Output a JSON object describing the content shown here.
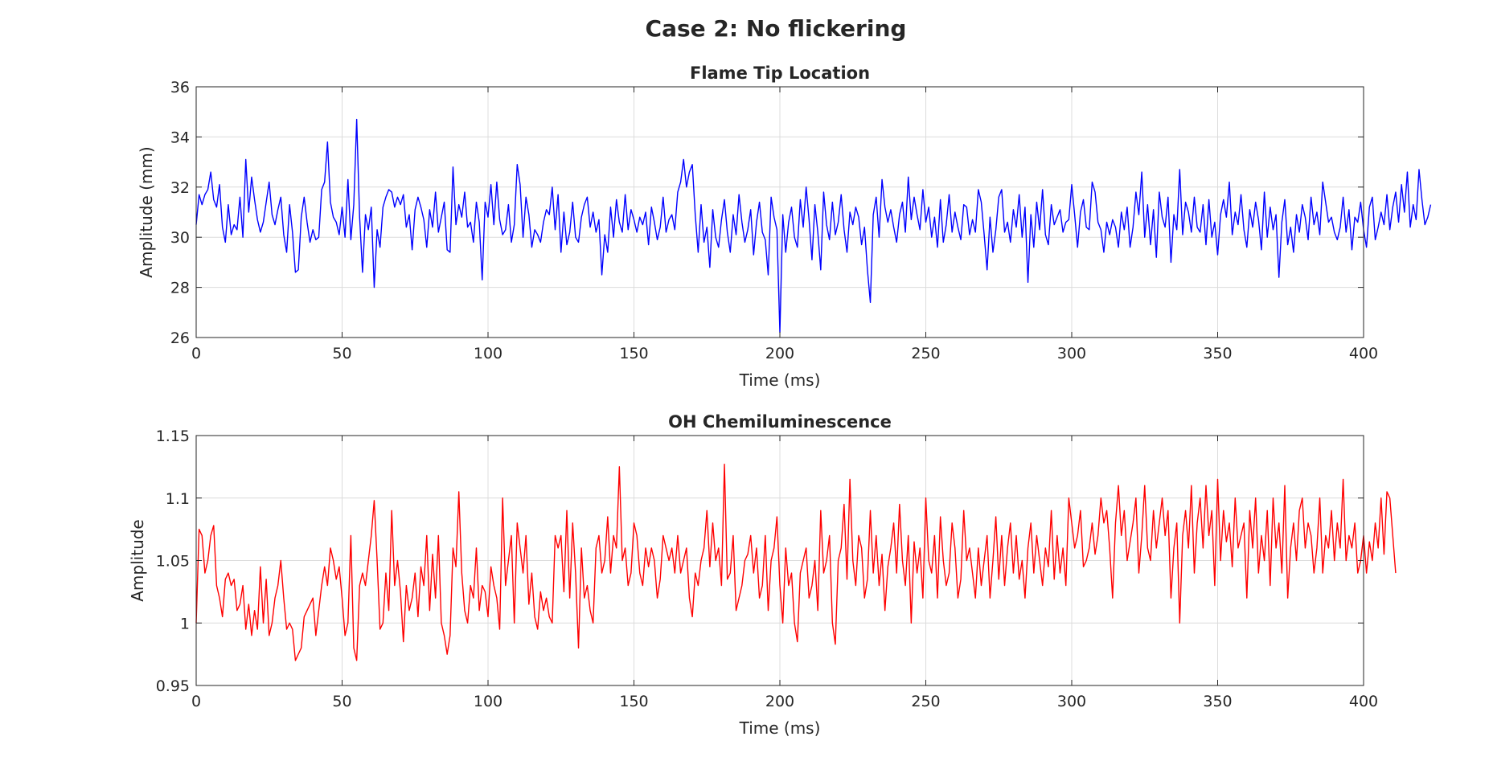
{
  "figure_title": "Case 2: No flickering",
  "chart_data": [
    {
      "type": "line",
      "title": "Flame Tip Location",
      "xlabel": "Time (ms)",
      "ylabel": "Amplitude (mm)",
      "xlim": [
        0,
        400
      ],
      "ylim": [
        26,
        36
      ],
      "xticks": [
        0,
        50,
        100,
        150,
        200,
        250,
        300,
        350,
        400
      ],
      "yticks": [
        26,
        28,
        30,
        32,
        34,
        36
      ],
      "ytick_labels": [
        "26",
        "28",
        "30",
        "32",
        "34",
        "36"
      ],
      "grid": true,
      "series": [
        {
          "name": "Flame Tip Location",
          "color": "#0000ff",
          "x_start": 0,
          "x_step": 1,
          "values": [
            30.5,
            31.7,
            31.3,
            31.7,
            31.9,
            32.6,
            31.5,
            31.2,
            32.1,
            30.4,
            29.8,
            31.3,
            30.1,
            30.5,
            30.3,
            31.6,
            30.0,
            33.1,
            31.0,
            32.4,
            31.5,
            30.7,
            30.2,
            30.6,
            31.4,
            32.2,
            30.9,
            30.5,
            31.1,
            31.6,
            30.1,
            29.4,
            31.3,
            30.2,
            28.6,
            28.7,
            30.8,
            31.6,
            30.6,
            29.8,
            30.3,
            29.9,
            30.0,
            31.9,
            32.2,
            33.8,
            31.4,
            30.8,
            30.6,
            30.1,
            31.2,
            30.0,
            32.3,
            29.9,
            31.3,
            34.7,
            30.8,
            28.6,
            30.9,
            30.3,
            31.2,
            28.0,
            30.3,
            29.6,
            31.2,
            31.6,
            31.9,
            31.8,
            31.2,
            31.6,
            31.3,
            31.7,
            30.4,
            30.9,
            29.5,
            31.1,
            31.6,
            31.2,
            30.7,
            29.6,
            31.1,
            30.4,
            31.8,
            30.2,
            30.8,
            31.4,
            29.5,
            29.4,
            32.8,
            30.5,
            31.3,
            30.8,
            31.8,
            30.4,
            30.6,
            29.8,
            31.4,
            30.6,
            28.3,
            31.4,
            30.8,
            32.1,
            30.5,
            32.2,
            30.7,
            30.1,
            30.3,
            31.3,
            29.8,
            30.5,
            32.9,
            32.1,
            30.0,
            31.6,
            30.9,
            29.6,
            30.3,
            30.1,
            29.8,
            30.6,
            31.1,
            30.9,
            32.0,
            30.3,
            31.7,
            29.4,
            31.0,
            29.7,
            30.2,
            31.4,
            30.0,
            29.8,
            30.8,
            31.3,
            31.6,
            30.4,
            31.0,
            30.2,
            30.7,
            28.5,
            30.1,
            29.4,
            31.2,
            30.0,
            31.5,
            30.6,
            30.2,
            31.7,
            30.3,
            31.1,
            30.7,
            30.2,
            30.8,
            30.5,
            31.0,
            29.7,
            31.2,
            30.6,
            29.9,
            30.4,
            31.6,
            30.2,
            30.7,
            30.9,
            30.3,
            31.8,
            32.2,
            33.1,
            32.0,
            32.6,
            32.9,
            30.9,
            29.4,
            31.3,
            29.8,
            30.4,
            28.8,
            31.1,
            30.0,
            29.6,
            30.7,
            31.5,
            30.2,
            29.4,
            30.9,
            30.1,
            31.7,
            30.6,
            29.8,
            30.3,
            31.1,
            29.3,
            30.6,
            31.4,
            30.2,
            29.9,
            28.5,
            31.6,
            30.8,
            30.3,
            26.2,
            30.9,
            29.4,
            30.6,
            31.2,
            30.0,
            29.6,
            31.5,
            30.4,
            32.0,
            30.7,
            29.1,
            31.3,
            30.2,
            28.7,
            31.8,
            30.5,
            29.9,
            31.4,
            30.1,
            30.6,
            31.7,
            30.3,
            29.4,
            31.0,
            30.5,
            31.2,
            30.8,
            29.7,
            30.4,
            28.7,
            27.4,
            30.9,
            31.6,
            30.0,
            32.3,
            31.2,
            30.6,
            31.1,
            30.4,
            29.8,
            30.9,
            31.4,
            30.2,
            32.4,
            30.7,
            31.6,
            30.9,
            30.3,
            31.9,
            30.6,
            31.2,
            30.0,
            30.8,
            29.6,
            31.5,
            29.8,
            30.5,
            31.7,
            30.2,
            31.0,
            30.4,
            29.9,
            31.3,
            31.2,
            30.1,
            30.7,
            30.2,
            31.9,
            31.4,
            30.1,
            28.7,
            30.8,
            29.4,
            30.3,
            31.6,
            31.9,
            30.2,
            30.6,
            29.8,
            31.1,
            30.4,
            31.7,
            30.0,
            31.2,
            28.2,
            30.9,
            29.6,
            31.4,
            30.3,
            31.9,
            30.1,
            29.7,
            31.3,
            30.5,
            30.8,
            31.1,
            30.2,
            30.6,
            30.7,
            32.1,
            30.9,
            29.6,
            31.0,
            31.5,
            30.4,
            30.3,
            32.2,
            31.8,
            30.6,
            30.3,
            29.4,
            30.6,
            30.1,
            30.7,
            30.4,
            29.6,
            31.0,
            30.3,
            31.2,
            29.6,
            30.4,
            31.8,
            30.9,
            32.6,
            30.0,
            31.3,
            29.7,
            31.1,
            29.2,
            31.8,
            30.8,
            30.4,
            31.6,
            29.0,
            30.9,
            30.3,
            32.7,
            30.1,
            31.4,
            31.0,
            30.2,
            31.6,
            30.4,
            30.2,
            31.3,
            29.7,
            31.5,
            30.0,
            30.6,
            29.3,
            30.9,
            31.5,
            30.8,
            32.2,
            30.1,
            31.0,
            30.5,
            31.7,
            30.3,
            29.6,
            31.1,
            30.4,
            31.4,
            30.7,
            29.5,
            31.8,
            30.0,
            31.2,
            30.3,
            30.9,
            28.4,
            30.6,
            31.5,
            29.7,
            30.4,
            29.4,
            30.9,
            30.2,
            31.3,
            30.8,
            29.9,
            31.6,
            30.5,
            31.0,
            30.1,
            32.2,
            31.4,
            30.6,
            30.8,
            30.2,
            29.9,
            30.4,
            31.6,
            30.2,
            31.1,
            29.5,
            30.8,
            30.6,
            31.4,
            30.3,
            29.6,
            31.2,
            31.6,
            29.9,
            30.4,
            31.0,
            30.5,
            31.7,
            30.3,
            31.2,
            31.8,
            30.6,
            32.1,
            31.0,
            32.6,
            30.4,
            31.3,
            30.7,
            32.7,
            31.5,
            30.5,
            30.8,
            31.3
          ]
        }
      ]
    },
    {
      "type": "line",
      "title": "OH Chemiluminescence",
      "xlabel": "Time (ms)",
      "ylabel": "Amplitude",
      "xlim": [
        0,
        400
      ],
      "ylim": [
        0.95,
        1.15
      ],
      "xticks": [
        0,
        50,
        100,
        150,
        200,
        250,
        300,
        350,
        400
      ],
      "yticks": [
        0.95,
        1.0,
        1.05,
        1.1,
        1.15
      ],
      "ytick_labels": [
        "0.95",
        "1",
        "1.05",
        "1.1",
        "1.15"
      ],
      "grid": true,
      "series": [
        {
          "name": "OH Chemiluminescence",
          "color": "#ff0000",
          "x_start": 0,
          "x_step": 1,
          "values": [
            1.0,
            1.075,
            1.07,
            1.04,
            1.05,
            1.07,
            1.078,
            1.03,
            1.02,
            1.005,
            1.035,
            1.04,
            1.03,
            1.035,
            1.01,
            1.015,
            1.03,
            0.995,
            1.015,
            0.99,
            1.01,
            0.995,
            1.045,
            1.0,
            1.035,
            0.99,
            1.0,
            1.02,
            1.03,
            1.05,
            1.02,
            0.995,
            1.0,
            0.995,
            0.97,
            0.975,
            0.98,
            1.005,
            1.01,
            1.015,
            1.02,
            0.99,
            1.01,
            1.03,
            1.045,
            1.03,
            1.06,
            1.05,
            1.035,
            1.045,
            1.02,
            0.99,
            1.0,
            1.07,
            0.98,
            0.97,
            1.03,
            1.04,
            1.03,
            1.05,
            1.07,
            1.098,
            1.05,
            0.995,
            1.0,
            1.04,
            1.01,
            1.09,
            1.03,
            1.05,
            1.025,
            0.985,
            1.03,
            1.01,
            1.02,
            1.04,
            1.005,
            1.045,
            1.03,
            1.07,
            1.01,
            1.055,
            1.02,
            1.07,
            1.0,
            0.99,
            0.975,
            0.99,
            1.06,
            1.045,
            1.105,
            1.04,
            1.01,
            1.0,
            1.03,
            1.02,
            1.06,
            1.01,
            1.03,
            1.025,
            1.005,
            1.045,
            1.03,
            1.02,
            0.995,
            1.1,
            1.03,
            1.05,
            1.07,
            1.0,
            1.08,
            1.06,
            1.04,
            1.07,
            1.015,
            1.04,
            1.005,
            0.995,
            1.025,
            1.01,
            1.02,
            1.005,
            1.0,
            1.07,
            1.06,
            1.07,
            1.025,
            1.09,
            1.02,
            1.08,
            1.04,
            0.98,
            1.06,
            1.02,
            1.03,
            1.01,
            1.0,
            1.06,
            1.07,
            1.04,
            1.05,
            1.085,
            1.04,
            1.07,
            1.06,
            1.125,
            1.05,
            1.06,
            1.03,
            1.04,
            1.08,
            1.07,
            1.04,
            1.03,
            1.06,
            1.045,
            1.06,
            1.05,
            1.02,
            1.035,
            1.07,
            1.06,
            1.05,
            1.06,
            1.04,
            1.07,
            1.04,
            1.05,
            1.06,
            1.02,
            1.005,
            1.04,
            1.03,
            1.05,
            1.06,
            1.09,
            1.045,
            1.08,
            1.05,
            1.06,
            1.03,
            1.127,
            1.035,
            1.04,
            1.07,
            1.01,
            1.02,
            1.03,
            1.05,
            1.055,
            1.07,
            1.04,
            1.06,
            1.02,
            1.03,
            1.07,
            1.01,
            1.05,
            1.06,
            1.085,
            1.03,
            1.0,
            1.06,
            1.03,
            1.04,
            1.0,
            0.985,
            1.04,
            1.05,
            1.06,
            1.02,
            1.03,
            1.05,
            1.01,
            1.09,
            1.04,
            1.05,
            1.07,
            1.0,
            0.983,
            1.05,
            1.06,
            1.095,
            1.035,
            1.115,
            1.05,
            1.03,
            1.07,
            1.06,
            1.02,
            1.035,
            1.09,
            1.04,
            1.07,
            1.03,
            1.055,
            1.01,
            1.045,
            1.06,
            1.08,
            1.04,
            1.095,
            1.05,
            1.03,
            1.07,
            1.0,
            1.065,
            1.04,
            1.06,
            1.02,
            1.1,
            1.05,
            1.04,
            1.07,
            1.02,
            1.085,
            1.05,
            1.03,
            1.04,
            1.08,
            1.06,
            1.02,
            1.035,
            1.09,
            1.05,
            1.06,
            1.04,
            1.02,
            1.06,
            1.03,
            1.05,
            1.07,
            1.02,
            1.05,
            1.085,
            1.035,
            1.07,
            1.03,
            1.06,
            1.08,
            1.04,
            1.07,
            1.035,
            1.05,
            1.02,
            1.06,
            1.08,
            1.04,
            1.07,
            1.05,
            1.03,
            1.06,
            1.045,
            1.09,
            1.035,
            1.07,
            1.04,
            1.06,
            1.03,
            1.1,
            1.08,
            1.06,
            1.07,
            1.09,
            1.045,
            1.05,
            1.06,
            1.08,
            1.055,
            1.07,
            1.1,
            1.08,
            1.09,
            1.06,
            1.02,
            1.08,
            1.11,
            1.07,
            1.09,
            1.05,
            1.065,
            1.08,
            1.1,
            1.04,
            1.07,
            1.11,
            1.06,
            1.05,
            1.09,
            1.06,
            1.08,
            1.1,
            1.07,
            1.09,
            1.02,
            1.06,
            1.08,
            1.0,
            1.07,
            1.09,
            1.06,
            1.11,
            1.04,
            1.08,
            1.1,
            1.06,
            1.11,
            1.07,
            1.09,
            1.03,
            1.115,
            1.05,
            1.09,
            1.065,
            1.08,
            1.045,
            1.1,
            1.06,
            1.07,
            1.08,
            1.02,
            1.09,
            1.06,
            1.1,
            1.04,
            1.07,
            1.05,
            1.09,
            1.03,
            1.1,
            1.06,
            1.08,
            1.04,
            1.11,
            1.02,
            1.06,
            1.08,
            1.05,
            1.09,
            1.1,
            1.06,
            1.08,
            1.07,
            1.04,
            1.06,
            1.1,
            1.04,
            1.07,
            1.06,
            1.09,
            1.05,
            1.08,
            1.06,
            1.115,
            1.05,
            1.07,
            1.06,
            1.08,
            1.04,
            1.05,
            1.07,
            1.04,
            1.065,
            1.05,
            1.08,
            1.06,
            1.1,
            1.055,
            1.105,
            1.1,
            1.07,
            1.04
          ]
        }
      ]
    }
  ]
}
